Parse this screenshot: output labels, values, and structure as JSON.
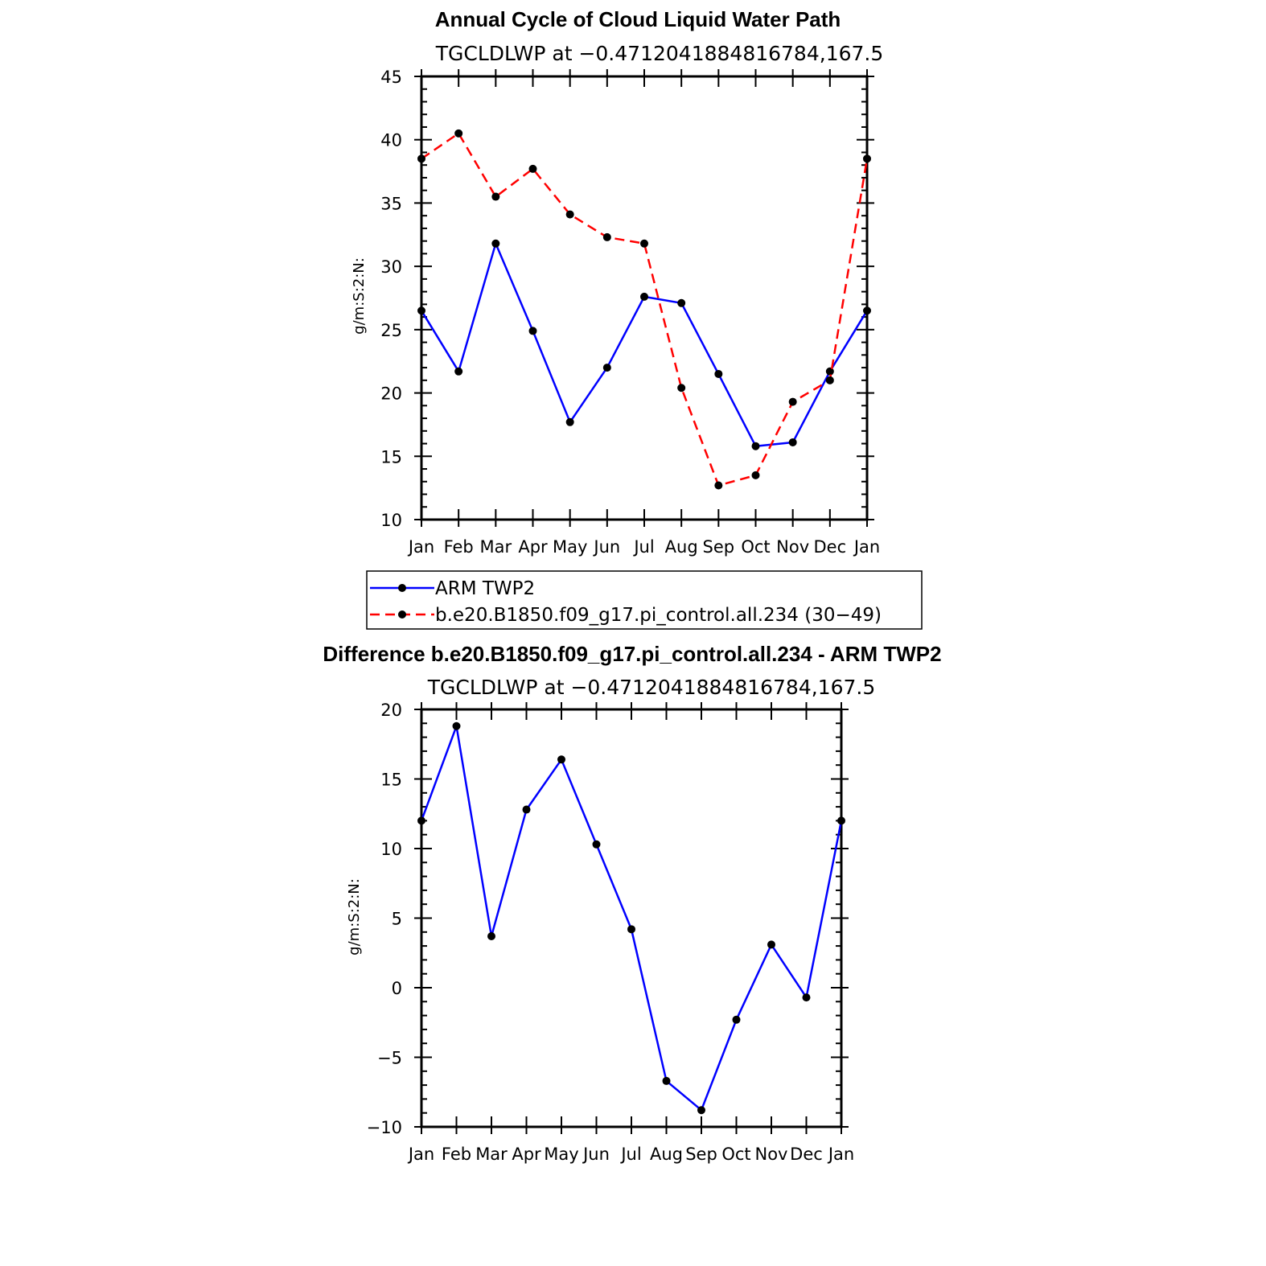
{
  "chart_data": [
    {
      "type": "line",
      "title": "Annual Cycle of Cloud Liquid Water Path",
      "subtitle": "TGCLDLWP at −0.4712041884816784,167.5",
      "ylabel": "g/m:S:2:N:",
      "xlabel": "",
      "categories": [
        "Jan",
        "Feb",
        "Mar",
        "Apr",
        "May",
        "Jun",
        "Jul",
        "Aug",
        "Sep",
        "Oct",
        "Nov",
        "Dec",
        "Jan"
      ],
      "ylim": [
        10,
        45
      ],
      "yticks": [
        10,
        15,
        20,
        25,
        30,
        35,
        40,
        45
      ],
      "ytick_labels": [
        "10",
        "15",
        "20",
        "25",
        "30",
        "35",
        "40",
        "45"
      ],
      "grid": false,
      "legend_position": "bottom",
      "series": [
        {
          "name": "ARM TWP2",
          "color": "#0000ff",
          "dash": "solid",
          "values": [
            26.5,
            21.7,
            31.8,
            24.9,
            17.7,
            22.0,
            27.6,
            27.1,
            21.5,
            15.8,
            16.1,
            21.7,
            26.5
          ]
        },
        {
          "name": "b.e20.B1850.f09_g17.pi_control.all.234 (30−49)",
          "color": "#ff0000",
          "dash": "dashed",
          "values": [
            38.5,
            40.5,
            35.5,
            37.7,
            34.1,
            32.3,
            31.8,
            20.4,
            12.7,
            13.5,
            19.3,
            21.0,
            38.5
          ]
        }
      ]
    },
    {
      "type": "line",
      "title": "Difference b.e20.B1850.f09_g17.pi_control.all.234 - ARM TWP2",
      "subtitle": "TGCLDLWP at −0.4712041884816784,167.5",
      "ylabel": "g/m:S:2:N:",
      "xlabel": "",
      "categories": [
        "Jan",
        "Feb",
        "Mar",
        "Apr",
        "May",
        "Jun",
        "Jul",
        "Aug",
        "Sep",
        "Oct",
        "Nov",
        "Dec",
        "Jan"
      ],
      "ylim": [
        -10,
        20
      ],
      "yticks": [
        -10,
        -5,
        0,
        5,
        10,
        15,
        20
      ],
      "ytick_labels": [
        "−10",
        "−5",
        "0",
        "5",
        "10",
        "15",
        "20"
      ],
      "grid": false,
      "series": [
        {
          "color": "#0000ff",
          "dash": "solid",
          "values": [
            12.0,
            18.8,
            3.7,
            12.8,
            16.4,
            10.3,
            4.2,
            -6.7,
            -8.8,
            -2.3,
            3.1,
            -0.7,
            12.0
          ]
        }
      ]
    }
  ]
}
